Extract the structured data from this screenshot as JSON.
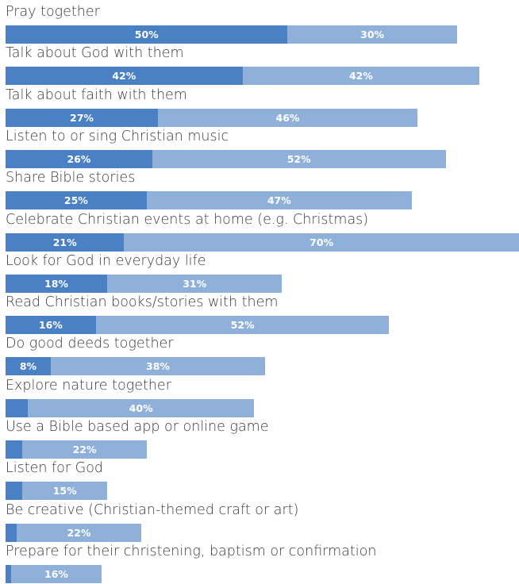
{
  "chart_data": {
    "type": "bar",
    "orientation": "horizontal",
    "stacked": true,
    "colors": {
      "series1": "#4a80c4",
      "series2": "#8fb1d9"
    },
    "categories": [
      "Pray together",
      "Talk about God with them",
      "Talk about faith with them",
      "Listen to or sing Christian music",
      "Share Bible stories",
      "Celebrate Christian events at home (e.g. Christmas)",
      "Look for God in everyday life",
      "Read Christian books/stories with them",
      "Do good deeds together",
      "Explore nature together",
      "Use a Bible based app or online game",
      "Listen for God",
      "Be creative (Christian-themed craft or art)",
      "Prepare for their christening, baptism or confirmation"
    ],
    "series": [
      {
        "values": [
          50,
          42,
          27,
          26,
          25,
          21,
          18,
          16,
          8,
          4,
          3,
          3,
          2,
          1
        ],
        "labels": [
          "50%",
          "42%",
          "27%",
          "26%",
          "25%",
          "21%",
          "18%",
          "16%",
          "8%",
          "",
          "",
          "",
          "",
          ""
        ]
      },
      {
        "values": [
          30,
          42,
          46,
          52,
          47,
          70,
          31,
          52,
          38,
          40,
          22,
          15,
          22,
          16
        ],
        "labels": [
          "30%",
          "42%",
          "46%",
          "52%",
          "47%",
          "70%",
          "31%",
          "52%",
          "38%",
          "40%",
          "22%",
          "15%",
          "22%",
          "16%"
        ]
      }
    ],
    "xlim": [
      0,
      91
    ]
  }
}
